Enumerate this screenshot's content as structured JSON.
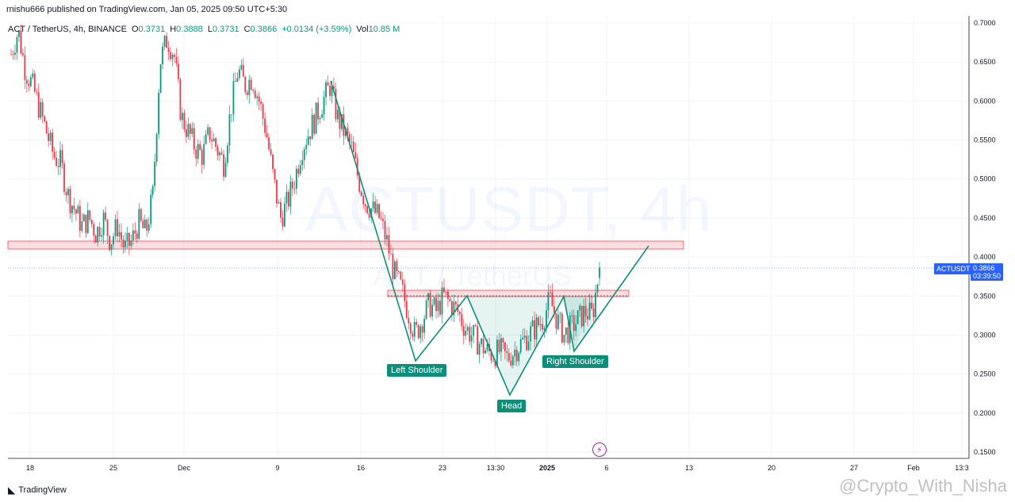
{
  "header": {
    "published": "rnishu666 published on TradingView.com, Jan 05, 2025 09:50 UTC+5:30"
  },
  "legend": {
    "symbol": "ACT / TetherUS, 4h, BINANCE",
    "open_key": "O",
    "open": "0.3731",
    "high_key": "H",
    "high": "0.3888",
    "low_key": "L",
    "low": "0.3731",
    "close_key": "C",
    "close": "0.3866",
    "change": "+0.0134 (+3.59%)",
    "vol_key": "Vol",
    "vol": "10.85 M"
  },
  "watermark": {
    "main": "ACTUSDT, 4h",
    "sub": "ACT / TetherUS"
  },
  "labels": {
    "left_shoulder": "Left Shoulder",
    "head": "Head",
    "right_shoulder": "Right Shoulder"
  },
  "price_label": {
    "ticker": "ACTUSDT",
    "price": "0.3866",
    "countdown": "03:39:50"
  },
  "footer": {
    "brand": "TradingView",
    "credit": "@Crypto_With_Nisha"
  },
  "colors": {
    "up": "#089981",
    "down": "#f23645",
    "pattern": "#0c8f7a",
    "zone": "#f7c8cc",
    "price_line": "#2962ff"
  },
  "chart_data": {
    "type": "candlestick",
    "x_ticks": [
      "18",
      "25",
      "Dec",
      "9",
      "16",
      "23",
      "13:30",
      "2025",
      "6",
      "13",
      "20",
      "27",
      "Feb",
      "13:3"
    ],
    "y_ticks": [
      "0.7000",
      "0.6500",
      "0.6000",
      "0.5500",
      "0.5000",
      "0.4500",
      "0.4000",
      "0.3500",
      "0.3000",
      "0.2500",
      "0.2000",
      "0.1500"
    ],
    "ylim": [
      0.14,
      0.705
    ],
    "last_price": 0.3866,
    "close_series": [
      0.66,
      0.69,
      0.64,
      0.62,
      0.59,
      0.56,
      0.53,
      0.52,
      0.48,
      0.46,
      0.44,
      0.45,
      0.43,
      0.45,
      0.42,
      0.44,
      0.41,
      0.42,
      0.445,
      0.43,
      0.48,
      0.65,
      0.68,
      0.66,
      0.58,
      0.56,
      0.54,
      0.53,
      0.56,
      0.54,
      0.52,
      0.59,
      0.64,
      0.62,
      0.63,
      0.6,
      0.56,
      0.5,
      0.45,
      0.47,
      0.5,
      0.54,
      0.56,
      0.58,
      0.6,
      0.62,
      0.58,
      0.56,
      0.54,
      0.5,
      0.47,
      0.46,
      0.45,
      0.42,
      0.38,
      0.36,
      0.33,
      0.3,
      0.32,
      0.34,
      0.33,
      0.35,
      0.34,
      0.33,
      0.31,
      0.3,
      0.29,
      0.28,
      0.275,
      0.28,
      0.27,
      0.28,
      0.29,
      0.3,
      0.31,
      0.32,
      0.345,
      0.32,
      0.3,
      0.31,
      0.32,
      0.33,
      0.325,
      0.3866
    ],
    "zones": [
      {
        "from": 0.411,
        "to": 0.421
      },
      {
        "from": 0.347,
        "to": 0.355
      }
    ],
    "pattern": {
      "name": "inverse head and shoulders",
      "left_shoulder": 0.27,
      "head": 0.222,
      "right_shoulder": 0.278,
      "neckline": 0.351
    }
  }
}
